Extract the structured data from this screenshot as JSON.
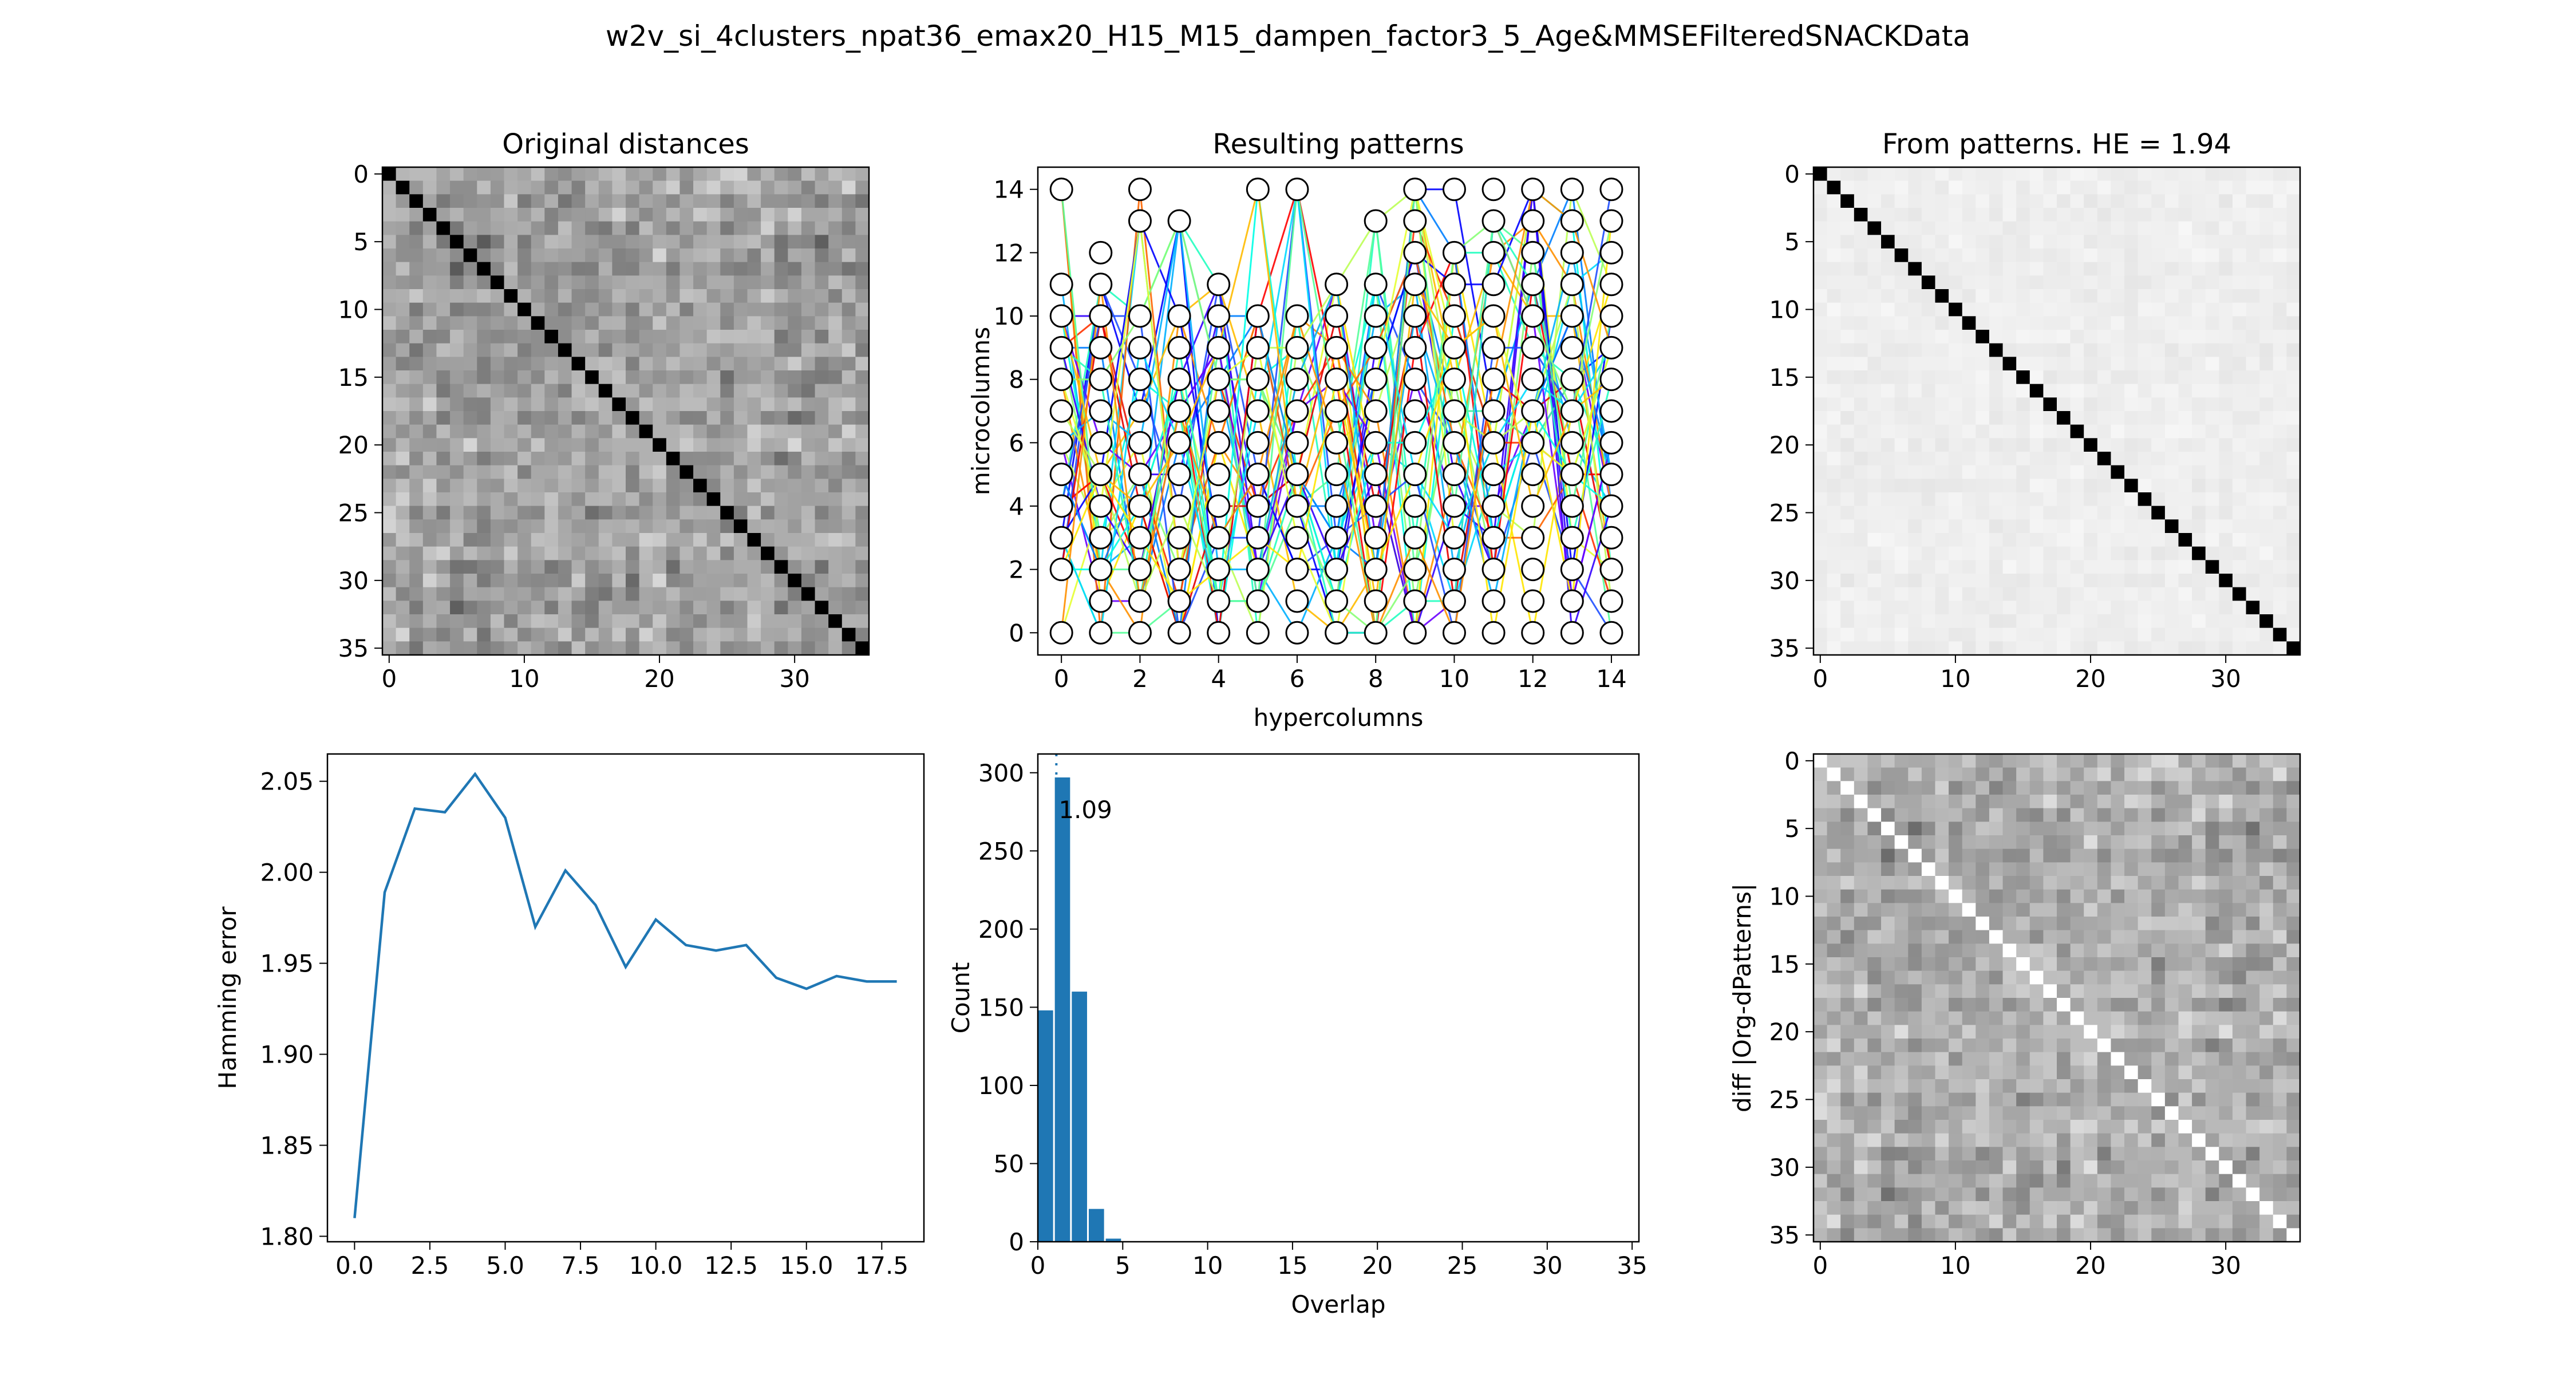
{
  "suptitle": "w2v_si_4clusters_npat36_emax20_H15_M15_dampen_factor3_5_Age&MMSEFilteredSNACKData",
  "chart_data": [
    {
      "id": "original-distances",
      "type": "heatmap",
      "title": "Original distances",
      "size": 36,
      "xticks": [
        0,
        10,
        20,
        30
      ],
      "yticks": [
        0,
        5,
        10,
        15,
        20,
        25,
        30,
        35
      ],
      "diagonal": 1.0,
      "seed": 11,
      "mean": 0.22,
      "spread": 0.45
    },
    {
      "id": "resulting-patterns",
      "type": "scatter",
      "title": "Resulting patterns",
      "xlabel": "hypercolumns",
      "ylabel": "microcolumns",
      "xlim": [
        -0.6,
        14.7
      ],
      "ylim": [
        -0.7,
        14.7
      ],
      "xticks": [
        0,
        2,
        4,
        6,
        8,
        10,
        12,
        14
      ],
      "yticks": [
        0,
        2,
        4,
        6,
        8,
        10,
        12,
        14
      ],
      "x": [
        0,
        1,
        2,
        3,
        4,
        5,
        6,
        7,
        8,
        9,
        10,
        11,
        12,
        13,
        14
      ],
      "occupied": [
        [
          0,
          2,
          3,
          4,
          5,
          6,
          7,
          8,
          9,
          10,
          11,
          14
        ],
        [
          0,
          1,
          2,
          3,
          4,
          5,
          6,
          7,
          8,
          9,
          10,
          11,
          12
        ],
        [
          0,
          1,
          2,
          3,
          4,
          5,
          6,
          7,
          8,
          9,
          10,
          13,
          14
        ],
        [
          0,
          1,
          2,
          3,
          4,
          5,
          6,
          7,
          8,
          9,
          10,
          13
        ],
        [
          0,
          1,
          2,
          3,
          4,
          5,
          6,
          7,
          8,
          9,
          10,
          11
        ],
        [
          0,
          1,
          2,
          3,
          4,
          5,
          6,
          7,
          8,
          9,
          10,
          14
        ],
        [
          0,
          1,
          2,
          3,
          4,
          5,
          6,
          7,
          8,
          9,
          10,
          14
        ],
        [
          0,
          1,
          2,
          3,
          4,
          5,
          6,
          7,
          8,
          9,
          10,
          11
        ],
        [
          0,
          1,
          2,
          3,
          4,
          5,
          6,
          7,
          8,
          9,
          10,
          11,
          13
        ],
        [
          0,
          1,
          2,
          3,
          4,
          5,
          6,
          7,
          8,
          9,
          10,
          11,
          12,
          13,
          14
        ],
        [
          0,
          1,
          2,
          3,
          4,
          5,
          6,
          7,
          8,
          9,
          10,
          11,
          12,
          14
        ],
        [
          0,
          1,
          2,
          3,
          4,
          5,
          6,
          7,
          8,
          9,
          10,
          11,
          12,
          13,
          14
        ],
        [
          0,
          1,
          2,
          3,
          4,
          5,
          6,
          7,
          8,
          9,
          10,
          11,
          12,
          13,
          14
        ],
        [
          0,
          1,
          2,
          3,
          4,
          5,
          6,
          7,
          8,
          9,
          10,
          11,
          12,
          13,
          14
        ],
        [
          0,
          1,
          2,
          3,
          4,
          5,
          6,
          7,
          8,
          9,
          10,
          11,
          12,
          13,
          14
        ]
      ],
      "n_patterns": 36,
      "line_colors": [
        "#0000ff",
        "#3300ff",
        "#6a00ff",
        "#1f4fff",
        "#0080ff",
        "#00b0ff",
        "#00d9ff",
        "#00ffe6",
        "#22ffc0",
        "#55ff99",
        "#88ff77",
        "#bbff55",
        "#e6ff33",
        "#ffe600",
        "#ffbb00",
        "#ff9000",
        "#ff6600",
        "#ff3300",
        "#ff0000",
        "#e60000"
      ],
      "seed": 7
    },
    {
      "id": "from-patterns",
      "type": "heatmap",
      "title": "From patterns. HE = 1.94",
      "size": 36,
      "xticks": [
        0,
        10,
        20,
        30
      ],
      "yticks": [
        0,
        5,
        10,
        15,
        20,
        25,
        30,
        35
      ],
      "diagonal": 1.0,
      "seed": 23,
      "mean": 0.04,
      "spread": 0.08
    },
    {
      "id": "hamming-error",
      "type": "line",
      "ylabel": "Hamming error",
      "x": [
        0,
        1,
        2,
        3,
        4,
        5,
        6,
        7,
        8,
        9,
        10,
        11,
        12,
        13,
        14,
        15,
        16,
        17,
        18
      ],
      "y": [
        1.81,
        1.989,
        2.035,
        2.033,
        2.054,
        2.03,
        1.97,
        2.001,
        1.982,
        1.948,
        1.974,
        1.96,
        1.957,
        1.96,
        1.942,
        1.936,
        1.943,
        1.94,
        1.94
      ],
      "xlim": [
        -0.9,
        18.9
      ],
      "ylim": [
        1.797,
        2.065
      ],
      "xticks": [
        0.0,
        2.5,
        5.0,
        7.5,
        10.0,
        12.5,
        15.0,
        17.5
      ],
      "xticklabels": [
        "0.0",
        "2.5",
        "5.0",
        "7.5",
        "10.0",
        "12.5",
        "15.0",
        "17.5"
      ],
      "yticks": [
        1.8,
        1.85,
        1.9,
        1.95,
        2.0,
        2.05
      ],
      "yticklabels": [
        "1.80",
        "1.85",
        "1.90",
        "1.95",
        "2.00",
        "2.05"
      ],
      "color": "#1f77b4"
    },
    {
      "id": "overlap-histogram",
      "type": "bar",
      "xlabel": "Overlap",
      "ylabel": "Count",
      "categories": [
        0,
        1,
        2,
        3,
        4
      ],
      "values": [
        148,
        297,
        160,
        21,
        2
      ],
      "xlim": [
        0,
        35.4
      ],
      "ylim": [
        0,
        312
      ],
      "xticks": [
        0,
        5,
        10,
        15,
        20,
        25,
        30,
        35
      ],
      "yticks": [
        0,
        50,
        100,
        150,
        200,
        250,
        300
      ],
      "mean_line": 1.09,
      "mean_label": "1.09",
      "color": "#1f77b4"
    },
    {
      "id": "difference",
      "type": "heatmap",
      "ylabel": "diff |Org-dPatterns|",
      "size": 36,
      "xticks": [
        0,
        10,
        20,
        30
      ],
      "yticks": [
        0,
        5,
        10,
        15,
        20,
        25,
        30,
        35
      ],
      "diagonal": 0.0,
      "seed": 11,
      "mean": 0.18,
      "spread": 0.42
    }
  ]
}
